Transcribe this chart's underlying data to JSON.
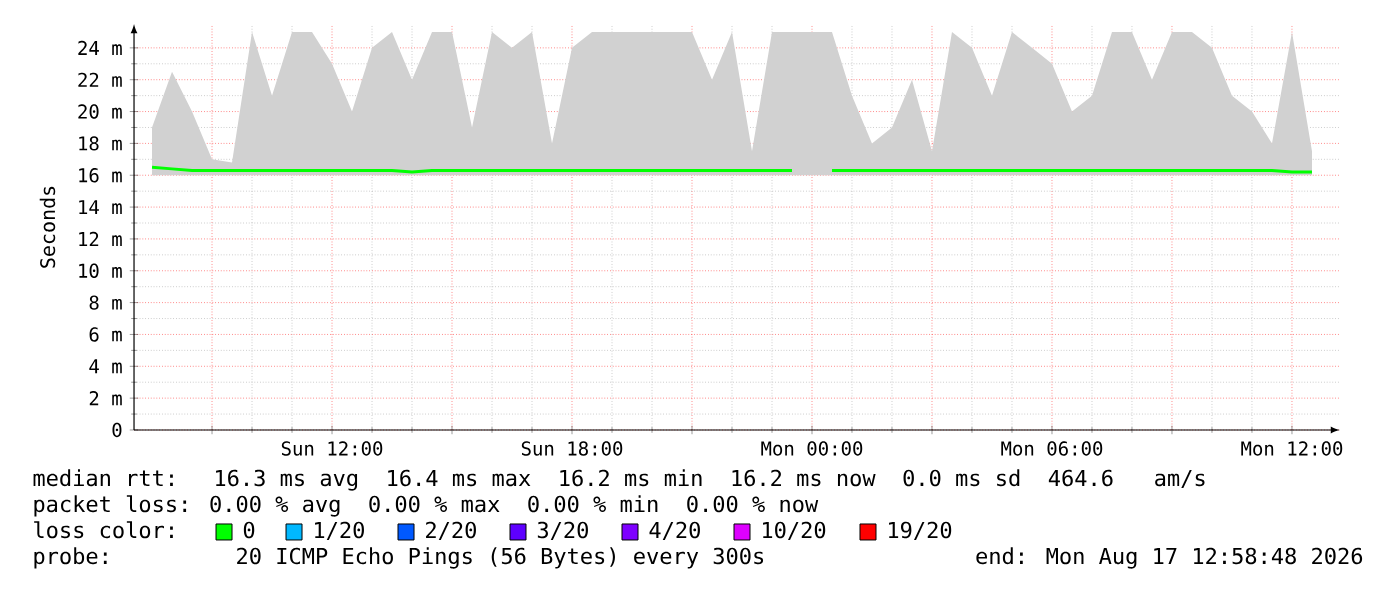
{
  "chart_data": {
    "type": "line",
    "ylabel": "Seconds",
    "xlim": [
      "2026-08-16T07:03",
      "2026-08-17T13:12"
    ],
    "ylim": [
      0,
      25.5
    ],
    "xticks": [
      {
        "value": "2026-08-16T09:00",
        "label": null
      },
      {
        "value": "2026-08-16T12:00",
        "label": "Sun 12:00"
      },
      {
        "value": "2026-08-16T15:00",
        "label": null
      },
      {
        "value": "2026-08-16T18:00",
        "label": "Sun 18:00"
      },
      {
        "value": "2026-08-16T21:00",
        "label": null
      },
      {
        "value": "2026-08-17T00:00",
        "label": "Mon 00:00"
      },
      {
        "value": "2026-08-17T03:00",
        "label": null
      },
      {
        "value": "2026-08-17T06:00",
        "label": "Mon 06:00"
      },
      {
        "value": "2026-08-17T09:00",
        "label": null
      },
      {
        "value": "2026-08-17T12:00",
        "label": "Mon 12:00"
      }
    ],
    "yticks": [
      {
        "value": 0,
        "label": "0"
      },
      {
        "value": 2,
        "label": "2 m"
      },
      {
        "value": 4,
        "label": "4 m"
      },
      {
        "value": 6,
        "label": "6 m"
      },
      {
        "value": 8,
        "label": "8 m"
      },
      {
        "value": 10,
        "label": "10 m"
      },
      {
        "value": 12,
        "label": "12 m"
      },
      {
        "value": 14,
        "label": "14 m"
      },
      {
        "value": 16,
        "label": "16 m"
      },
      {
        "value": 18,
        "label": "18 m"
      },
      {
        "value": 20,
        "label": "20 m"
      },
      {
        "value": 22,
        "label": "22 m"
      },
      {
        "value": 24,
        "label": "24 m"
      }
    ],
    "x": [
      "2026-08-16T07:30",
      "2026-08-16T08:00",
      "2026-08-16T08:30",
      "2026-08-16T09:00",
      "2026-08-16T09:30",
      "2026-08-16T10:00",
      "2026-08-16T10:30",
      "2026-08-16T11:00",
      "2026-08-16T11:30",
      "2026-08-16T12:00",
      "2026-08-16T12:30",
      "2026-08-16T13:00",
      "2026-08-16T13:30",
      "2026-08-16T14:00",
      "2026-08-16T14:30",
      "2026-08-16T15:00",
      "2026-08-16T15:30",
      "2026-08-16T16:00",
      "2026-08-16T16:30",
      "2026-08-16T17:00",
      "2026-08-16T17:30",
      "2026-08-16T18:00",
      "2026-08-16T18:30",
      "2026-08-16T19:00",
      "2026-08-16T19:30",
      "2026-08-16T20:00",
      "2026-08-16T20:30",
      "2026-08-16T21:00",
      "2026-08-16T21:30",
      "2026-08-16T22:00",
      "2026-08-16T22:30",
      "2026-08-16T23:00",
      "2026-08-16T23:30",
      "2026-08-17T00:00",
      "2026-08-17T00:30",
      "2026-08-17T01:00",
      "2026-08-17T01:30",
      "2026-08-17T02:00",
      "2026-08-17T02:30",
      "2026-08-17T03:00",
      "2026-08-17T03:30",
      "2026-08-17T04:00",
      "2026-08-17T04:30",
      "2026-08-17T05:00",
      "2026-08-17T05:30",
      "2026-08-17T06:00",
      "2026-08-17T06:30",
      "2026-08-17T07:00",
      "2026-08-17T07:30",
      "2026-08-17T08:00",
      "2026-08-17T08:30",
      "2026-08-17T09:00",
      "2026-08-17T09:30",
      "2026-08-17T10:00",
      "2026-08-17T10:30",
      "2026-08-17T11:00",
      "2026-08-17T11:30",
      "2026-08-17T12:00",
      "2026-08-17T12:30"
    ],
    "grid": true,
    "marker": "none",
    "line_style": "solid",
    "legend": "bottom",
    "legend_title": "loss color:",
    "series": [
      {
        "name": "0",
        "color": "#00ff00",
        "values": [
          16.5,
          16.4,
          16.3,
          16.3,
          16.3,
          16.3,
          16.3,
          16.3,
          16.3,
          16.3,
          16.3,
          16.3,
          16.3,
          16.2,
          16.3,
          16.3,
          16.3,
          16.3,
          16.3,
          16.3,
          16.3,
          16.3,
          16.3,
          16.3,
          16.3,
          16.3,
          16.3,
          16.3,
          16.3,
          16.3,
          16.3,
          16.3,
          16.3,
          null,
          16.3,
          16.3,
          16.3,
          16.3,
          16.3,
          16.3,
          16.3,
          16.3,
          16.3,
          16.3,
          16.3,
          16.3,
          16.3,
          16.3,
          16.3,
          16.3,
          16.3,
          16.3,
          16.3,
          16.3,
          16.3,
          16.3,
          16.3,
          16.2,
          16.2
        ],
        "lower": [
          16,
          16,
          16,
          16,
          16,
          16,
          16,
          16,
          16,
          16,
          16,
          16,
          16,
          16,
          16,
          16,
          16,
          16,
          16,
          16,
          16,
          16,
          16,
          16,
          16,
          16,
          16,
          16,
          16,
          16,
          16,
          16,
          16,
          16,
          16,
          16,
          16,
          16,
          16,
          16,
          16,
          16,
          16,
          16,
          16,
          16,
          16,
          16,
          16,
          16,
          16,
          16,
          16,
          16,
          16,
          16,
          16,
          16,
          16
        ],
        "upper": [
          19,
          22.5,
          20,
          17,
          16.8,
          25,
          21,
          25,
          25,
          23,
          20,
          24,
          25,
          22,
          25,
          25,
          19,
          25,
          24,
          25,
          18,
          24,
          25,
          25,
          25,
          25,
          25,
          25,
          22,
          25,
          17.5,
          25,
          25,
          25,
          25,
          21,
          18,
          19,
          22,
          17.5,
          25,
          24,
          21,
          25,
          24,
          23,
          20,
          21,
          25,
          25,
          22,
          25,
          25,
          24,
          21,
          20,
          18,
          25,
          17.5
        ]
      },
      {
        "name": "1/20",
        "color": "#00b8ff",
        "values": [
          null,
          null,
          null,
          null,
          null,
          null,
          null,
          null,
          null,
          null,
          null,
          null,
          null,
          null,
          null,
          null,
          null,
          null,
          null,
          null,
          null,
          null,
          null,
          null,
          null,
          null,
          null,
          null,
          null,
          null,
          null,
          null,
          null,
          null,
          null,
          null,
          null,
          null,
          null,
          null,
          null,
          null,
          null,
          null,
          null,
          null,
          null,
          null,
          null,
          null,
          null,
          null,
          null,
          null,
          null,
          null,
          null,
          null,
          null
        ]
      },
      {
        "name": "2/20",
        "color": "#0059ff",
        "values": [
          null,
          null,
          null,
          null,
          null,
          null,
          null,
          null,
          null,
          null,
          null,
          null,
          null,
          null,
          null,
          null,
          null,
          null,
          null,
          null,
          null,
          null,
          null,
          null,
          null,
          null,
          null,
          null,
          null,
          null,
          null,
          null,
          null,
          null,
          null,
          null,
          null,
          null,
          null,
          null,
          null,
          null,
          null,
          null,
          null,
          null,
          null,
          null,
          null,
          null,
          null,
          null,
          null,
          null,
          null,
          null,
          null,
          null,
          null
        ]
      },
      {
        "name": "3/20",
        "color": "#5e00ff",
        "values": [
          null,
          null,
          null,
          null,
          null,
          null,
          null,
          null,
          null,
          null,
          null,
          null,
          null,
          null,
          null,
          null,
          null,
          null,
          null,
          null,
          null,
          null,
          null,
          null,
          null,
          null,
          null,
          null,
          null,
          null,
          null,
          null,
          null,
          null,
          null,
          null,
          null,
          null,
          null,
          null,
          null,
          null,
          null,
          null,
          null,
          null,
          null,
          null,
          null,
          null,
          null,
          null,
          null,
          null,
          null,
          null,
          null,
          null,
          null
        ]
      },
      {
        "name": "4/20",
        "color": "#7e00ff",
        "values": [
          null,
          null,
          null,
          null,
          null,
          null,
          null,
          null,
          null,
          null,
          null,
          null,
          null,
          null,
          null,
          null,
          null,
          null,
          null,
          null,
          null,
          null,
          null,
          null,
          null,
          null,
          null,
          null,
          null,
          null,
          null,
          null,
          null,
          null,
          null,
          null,
          null,
          null,
          null,
          null,
          null,
          null,
          null,
          null,
          null,
          null,
          null,
          null,
          null,
          null,
          null,
          null,
          null,
          null,
          null,
          null,
          null,
          null,
          null
        ]
      },
      {
        "name": "10/20",
        "color": "#dd00ff",
        "values": [
          null,
          null,
          null,
          null,
          null,
          null,
          null,
          null,
          null,
          null,
          null,
          null,
          null,
          null,
          null,
          null,
          null,
          null,
          null,
          null,
          null,
          null,
          null,
          null,
          null,
          null,
          null,
          null,
          null,
          null,
          null,
          null,
          null,
          null,
          null,
          null,
          null,
          null,
          null,
          null,
          null,
          null,
          null,
          null,
          null,
          null,
          null,
          null,
          null,
          null,
          null,
          null,
          null,
          null,
          null,
          null,
          null,
          null,
          null
        ]
      },
      {
        "name": "19/20",
        "color": "#ff0000",
        "values": [
          null,
          null,
          null,
          null,
          null,
          null,
          null,
          null,
          null,
          null,
          null,
          null,
          null,
          null,
          null,
          null,
          null,
          null,
          null,
          null,
          null,
          null,
          null,
          null,
          null,
          null,
          null,
          null,
          null,
          null,
          null,
          null,
          null,
          null,
          null,
          null,
          null,
          null,
          null,
          null,
          null,
          null,
          null,
          null,
          null,
          null,
          null,
          null,
          null,
          null,
          null,
          null,
          null,
          null,
          null,
          null,
          null,
          null,
          null
        ]
      }
    ],
    "annotations": [
      "median rtt:  16.3 ms avg  16.4 ms max  16.2 ms min  16.2 ms now  0.0 ms sd  464.6   am/s",
      "packet loss: 0.00 % avg  0.00 % max  0.00 % min  0.00 % now",
      "probe:       20 ICMP Echo Pings (56 Bytes) every 300s",
      "end: Mon Aug 17 12:58:48 2026"
    ]
  }
}
